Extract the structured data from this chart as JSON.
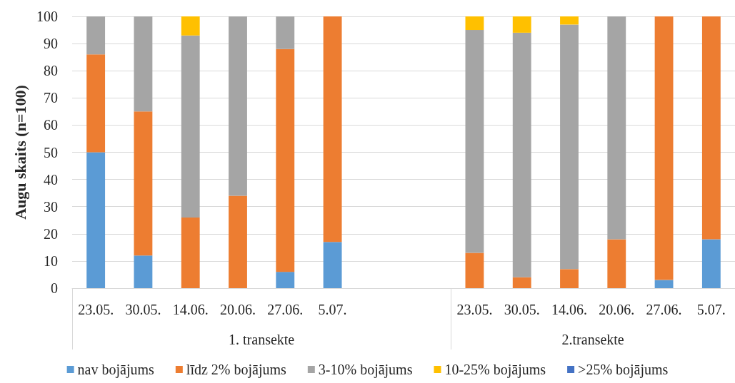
{
  "chart_data": {
    "type": "bar",
    "stacked": true,
    "ylabel": "Augu skaits (n=100)",
    "categories": [
      "23.05.",
      "30.05.",
      "14.06.",
      "20.06.",
      "27.06.",
      "5.07.",
      null,
      null,
      "23.05.",
      "30.05.",
      "14.06.",
      "20.06.",
      "27.06.",
      "5.07."
    ],
    "series": [
      {
        "name": "nav bojājums",
        "color": "#5b9bd5",
        "values": [
          50,
          12,
          0,
          0,
          6,
          17,
          null,
          null,
          0,
          0,
          0,
          0,
          3,
          18
        ]
      },
      {
        "name": "līdz 2% bojājums",
        "color": "#ed7d31",
        "values": [
          36,
          53,
          26,
          34,
          82,
          83,
          null,
          null,
          13,
          4,
          7,
          18,
          97,
          82
        ]
      },
      {
        "name": "3-10% bojājums",
        "color": "#a5a5a5",
        "values": [
          14,
          35,
          67,
          66,
          12,
          0,
          null,
          null,
          82,
          90,
          90,
          82,
          0,
          0
        ]
      },
      {
        "name": "10-25% bojājums",
        "color": "#ffc000",
        "values": [
          0,
          0,
          7,
          0,
          0,
          0,
          null,
          null,
          5,
          6,
          3,
          0,
          0,
          0
        ]
      },
      {
        "name": ">25% bojājums",
        "color": "#4472c4",
        "values": [
          0,
          0,
          0,
          0,
          0,
          0,
          null,
          null,
          0,
          0,
          0,
          0,
          0,
          0
        ]
      }
    ],
    "annotations": [
      "1. transekte",
      "2.transekte"
    ],
    "ylim": [
      0,
      100
    ],
    "yticks": [
      0,
      10,
      20,
      30,
      40,
      50,
      60,
      70,
      80,
      90,
      100
    ],
    "grid": "y",
    "legend": "bottom"
  }
}
